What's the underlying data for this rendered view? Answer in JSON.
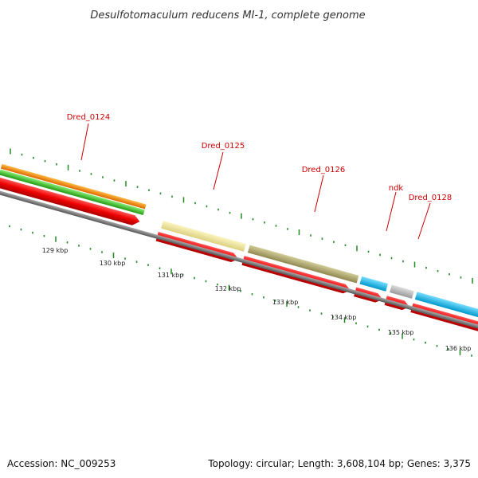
{
  "title": "Desulfotomaculum reducens MI-1, complete genome",
  "gene_labels": {
    "dred_0124": "Dred_0124",
    "dred_0125": "Dred_0125",
    "dred_0126": "Dred_0126",
    "ndk": "ndk",
    "dred_0128": "Dred_0128"
  },
  "position_labels": [
    "129 kbp",
    "130 kbp",
    "131 kbp",
    "132 kbp",
    "133 kbp",
    "134 kbp",
    "135 kbp",
    "136 kbp"
  ],
  "footer": {
    "accession": "Accession: NC_009253",
    "summary": "Topology: circular; Length: 3,608,104 bp; Genes: 3,375"
  },
  "colors": {
    "cds": "#ee0000",
    "gene_green": "#44cc33",
    "gene_orange": "#ff8800",
    "gene_pale_yellow": "#f0e68c",
    "gene_khaki": "#b8b070",
    "gene_cyan": "#22bbee",
    "gene_gray": "#bbbbbb",
    "backbone": "#7a7a7a",
    "ticks": "#228822",
    "label": "#cc0000"
  }
}
